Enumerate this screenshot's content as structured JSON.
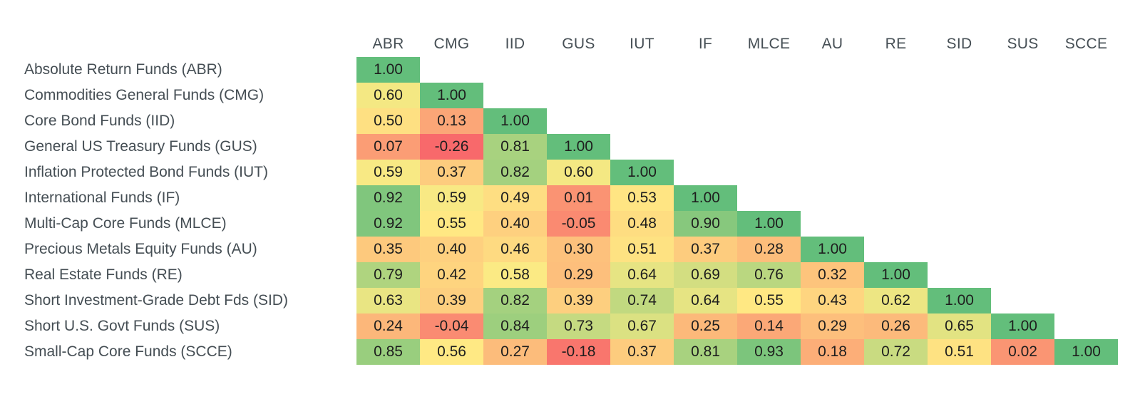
{
  "colors": {
    "background": "#FFFFFF",
    "label_text": "#454E54",
    "cell_text": "#1E1E1E",
    "scale_min_color": "#F8696B",
    "scale_mid_color": "#FFEB84",
    "scale_max_color": "#63BE7B",
    "scale_min_value": -0.26,
    "scale_mid_value": 0.57,
    "scale_max_value": 1.0
  },
  "chart_data": {
    "type": "heatmap",
    "subtype": "correlation-matrix",
    "layout": "lower-triangle",
    "legend": "none",
    "grid": false,
    "value_format": "0.00",
    "columns": [
      "ABR",
      "CMG",
      "IID",
      "GUS",
      "IUT",
      "IF",
      "MLCE",
      "AU",
      "RE",
      "SID",
      "SUS",
      "SCCE"
    ],
    "rows": [
      {
        "label": "Absolute Return Funds (ABR)",
        "values": [
          1.0
        ]
      },
      {
        "label": "Commodities General Funds (CMG)",
        "values": [
          0.6,
          1.0
        ]
      },
      {
        "label": "Core Bond Funds (IID)",
        "values": [
          0.5,
          0.13,
          1.0
        ]
      },
      {
        "label": "General US Treasury Funds (GUS)",
        "values": [
          0.07,
          -0.26,
          0.81,
          1.0
        ]
      },
      {
        "label": "Inflation Protected Bond Funds (IUT)",
        "values": [
          0.59,
          0.37,
          0.82,
          0.6,
          1.0
        ]
      },
      {
        "label": "International Funds (IF)",
        "values": [
          0.92,
          0.59,
          0.49,
          0.01,
          0.53,
          1.0
        ]
      },
      {
        "label": "Multi-Cap Core Funds (MLCE)",
        "values": [
          0.92,
          0.55,
          0.4,
          -0.05,
          0.48,
          0.9,
          1.0
        ]
      },
      {
        "label": "Precious Metals Equity Funds (AU)",
        "values": [
          0.35,
          0.4,
          0.46,
          0.3,
          0.51,
          0.37,
          0.28,
          1.0
        ]
      },
      {
        "label": "Real Estate Funds (RE)",
        "values": [
          0.79,
          0.42,
          0.58,
          0.29,
          0.64,
          0.69,
          0.76,
          0.32,
          1.0
        ]
      },
      {
        "label": "Short Investment-Grade Debt Fds (SID)",
        "values": [
          0.63,
          0.39,
          0.82,
          0.39,
          0.74,
          0.64,
          0.55,
          0.43,
          0.62,
          1.0
        ]
      },
      {
        "label": "Short U.S. Govt Funds (SUS)",
        "values": [
          0.24,
          -0.04,
          0.84,
          0.73,
          0.67,
          0.25,
          0.14,
          0.29,
          0.26,
          0.65,
          1.0
        ]
      },
      {
        "label": "Small-Cap Core Funds (SCCE)",
        "values": [
          0.85,
          0.56,
          0.27,
          -0.18,
          0.37,
          0.81,
          0.93,
          0.18,
          0.72,
          0.51,
          0.02,
          1.0
        ]
      }
    ]
  }
}
